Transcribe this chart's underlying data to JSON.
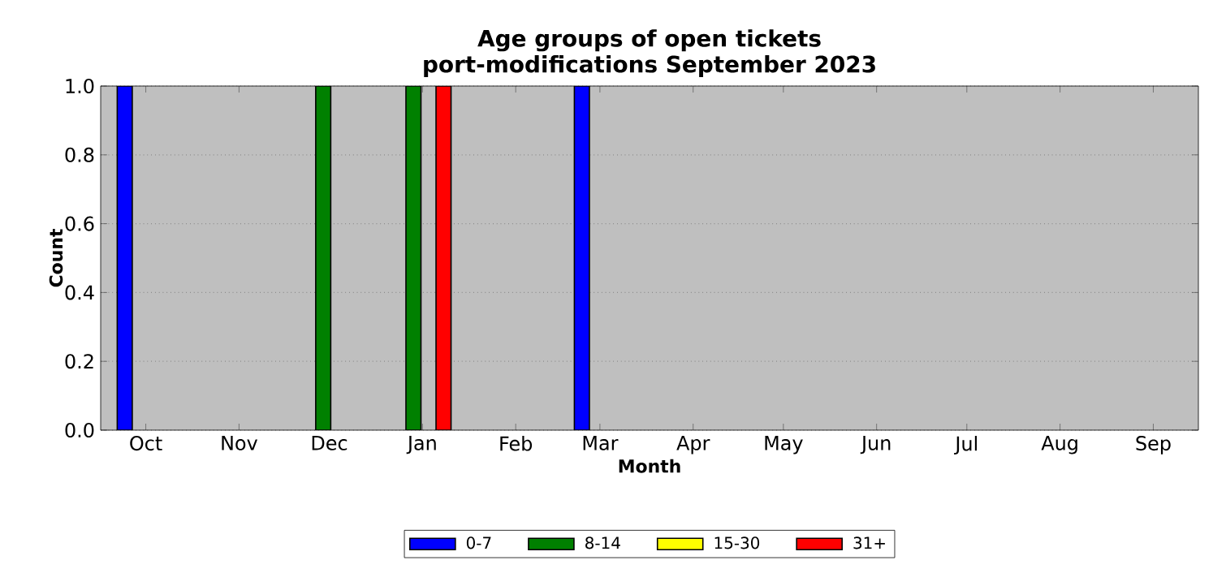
{
  "chart_data": {
    "type": "bar",
    "title": "Age groups of open tickets\nport-modifications September 2023",
    "xlabel": "Month",
    "ylabel": "Count",
    "series": [
      {
        "name": "0-7",
        "color": "#0000ff",
        "x": [
          "2022-09-24",
          "2023-02-23"
        ],
        "values": [
          1,
          1
        ]
      },
      {
        "name": "8-14",
        "color": "#008000",
        "x": [
          "2022-11-29",
          "2022-12-29"
        ],
        "values": [
          1,
          1
        ]
      },
      {
        "name": "15-30",
        "color": "#ffff00"
      },
      {
        "name": "31+",
        "color": "#ff0000",
        "x": [
          "2023-01-08"
        ],
        "values": [
          1
        ]
      }
    ],
    "xlim": [
      "2022-09-16",
      "2023-09-16"
    ],
    "xticks": [
      {
        "value": "2022-10-01",
        "label": "Oct"
      },
      {
        "value": "2022-11-01",
        "label": "Nov"
      },
      {
        "value": "2022-12-01",
        "label": "Dec"
      },
      {
        "value": "2023-01-01",
        "label": "Jan"
      },
      {
        "value": "2023-02-01",
        "label": "Feb"
      },
      {
        "value": "2023-03-01",
        "label": "Mar"
      },
      {
        "value": "2023-04-01",
        "label": "Apr"
      },
      {
        "value": "2023-05-01",
        "label": "May"
      },
      {
        "value": "2023-06-01",
        "label": "Jun"
      },
      {
        "value": "2023-07-01",
        "label": "Jul"
      },
      {
        "value": "2023-08-01",
        "label": "Aug"
      },
      {
        "value": "2023-09-01",
        "label": "Sep"
      }
    ],
    "ylim": [
      0,
      1
    ],
    "yticks": [
      {
        "value": 0,
        "label": "0.0"
      },
      {
        "value": 0.2,
        "label": "0.2"
      },
      {
        "value": 0.4,
        "label": "0.4"
      },
      {
        "value": 0.6,
        "label": "0.6"
      },
      {
        "value": 0.8,
        "label": "0.8"
      },
      {
        "value": 1,
        "label": "1.0"
      }
    ],
    "grid": "y",
    "legend": "bottom"
  }
}
